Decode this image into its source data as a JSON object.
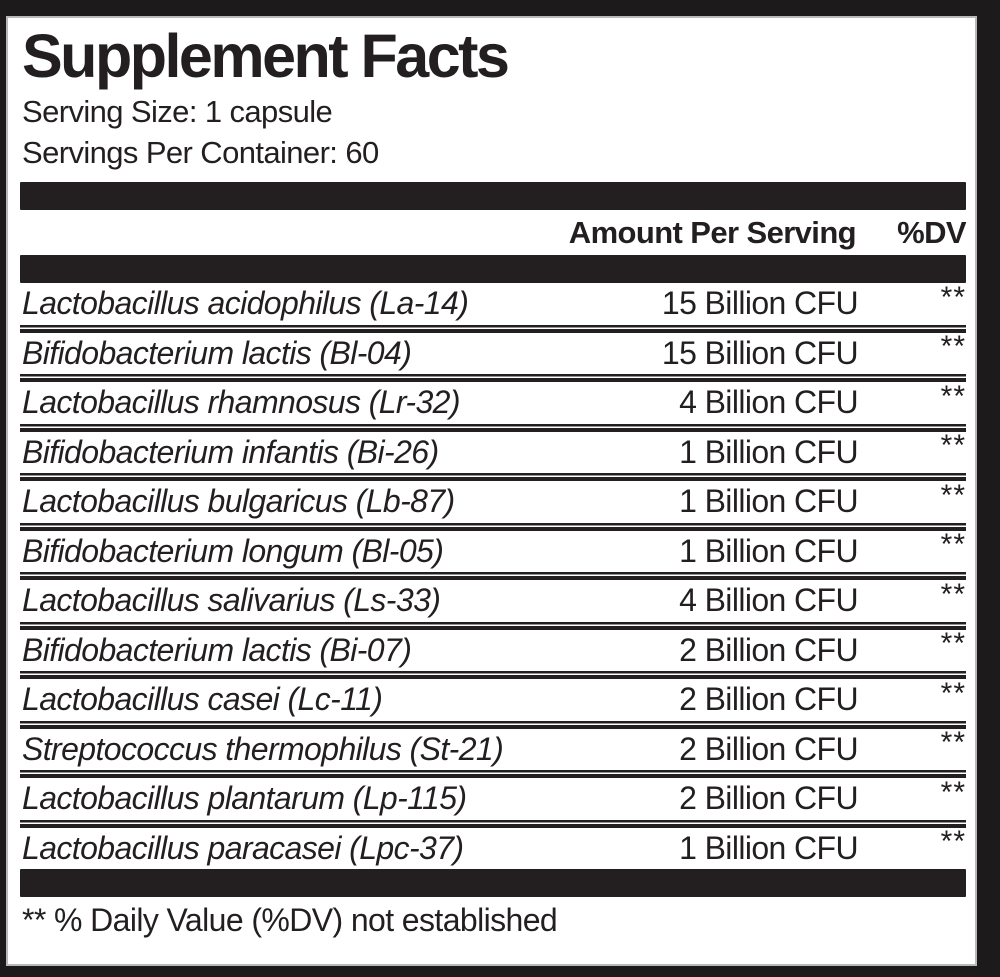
{
  "label": {
    "title": "Supplement Facts",
    "serving_size": "Serving Size: 1 capsule",
    "servings_per_container": "Servings Per Container: 60",
    "columns": {
      "amount": "Amount Per Serving",
      "dv": "%DV"
    },
    "rows": [
      {
        "name": "Lactobacillus acidophilus (La-14)",
        "amount": "15 Billion CFU",
        "dv": "**"
      },
      {
        "name": "Bifidobacterium lactis (Bl-04)",
        "amount": "15 Billion CFU",
        "dv": "**"
      },
      {
        "name": "Lactobacillus rhamnosus (Lr-32)",
        "amount": "4 Billion CFU",
        "dv": "**"
      },
      {
        "name": "Bifidobacterium infantis (Bi-26)",
        "amount": "1 Billion CFU",
        "dv": "**"
      },
      {
        "name": "Lactobacillus bulgaricus (Lb-87)",
        "amount": "1 Billion CFU",
        "dv": "**"
      },
      {
        "name": "Bifidobacterium longum (Bl-05)",
        "amount": "1 Billion CFU",
        "dv": "**"
      },
      {
        "name": "Lactobacillus salivarius (Ls-33)",
        "amount": "4 Billion CFU",
        "dv": "**"
      },
      {
        "name": "Bifidobacterium lactis (Bi-07)",
        "amount": "2 Billion CFU",
        "dv": "**"
      },
      {
        "name": "Lactobacillus casei (Lc-11)",
        "amount": "2 Billion CFU",
        "dv": "**"
      },
      {
        "name": "Streptococcus thermophilus (St-21)",
        "amount": "2 Billion CFU",
        "dv": "**"
      },
      {
        "name": "Lactobacillus plantarum (Lp-115)",
        "amount": "2 Billion CFU",
        "dv": "**"
      },
      {
        "name": "Lactobacillus paracasei (Lpc-37)",
        "amount": "1 Billion CFU",
        "dv": "**"
      }
    ],
    "footnote": "** % Daily Value (%DV) not established",
    "colors": {
      "ink": "#231f20",
      "panel_background": "#ffffff",
      "frame": "#1d1a1b"
    }
  }
}
